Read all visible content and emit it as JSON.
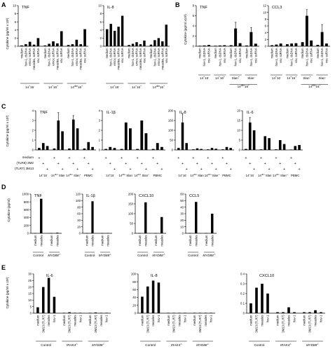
{
  "chart_data": [
    {
      "panel": "A",
      "type": "bar",
      "ylabel": "Cytokine (pg/ml x 10²)",
      "charts": [
        {
          "title": "TNF",
          "ylim": [
            0,
            10
          ],
          "yticks": [
            0,
            2,
            4,
            6,
            8,
            10
          ],
          "categories": [
            "medium",
            "hsv-1, dsDNA",
            "emcv, ssRNA",
            "measles, ssRNA",
            "vsv, ssRNA"
          ],
          "group_width": 5,
          "values": [
            0.2,
            0.5,
            1.1,
            0.4,
            2.0,
            0.2,
            0.6,
            1.2,
            0.7,
            3.7,
            0.3,
            0.5,
            1.6,
            0.5,
            4.2
          ],
          "groups": [
            {
              "label_parts": [
                "14",
                "+",
                "16",
                "-"
              ]
            },
            {
              "label_parts": [
                "14",
                "+",
                "16",
                "+"
              ]
            },
            {
              "label_parts": [
                "14",
                "dim",
                "16",
                "+"
              ]
            }
          ]
        },
        {
          "title": "IL-8",
          "ylim": [
            0,
            10
          ],
          "yticks": [
            0,
            2,
            4,
            6,
            8,
            10
          ],
          "categories": [
            "medium",
            "hsv-1, dsDNA",
            "emcv, ssRNA",
            "measles, ssRNA",
            "vsv, ssRNA"
          ],
          "group_width": 5,
          "values": [
            4.2,
            5.5,
            3.8,
            4.8,
            7.5,
            0.3,
            0.6,
            1.0,
            0.5,
            1.4,
            0.4,
            1.5,
            2.0,
            1.2,
            5.3
          ],
          "groups": [
            {
              "label_parts": [
                "14",
                "+",
                "16",
                "-"
              ]
            },
            {
              "label_parts": [
                "14",
                "+",
                "16",
                "+"
              ]
            },
            {
              "label_parts": [
                "14",
                "dim",
                "16",
                "+"
              ]
            }
          ]
        }
      ]
    },
    {
      "panel": "B",
      "type": "bar",
      "ylabel": "Cytokine (pg/ml x10²)",
      "charts": [
        {
          "title": "TNF",
          "ylim": [
            0,
            8
          ],
          "yticks": [
            0,
            2,
            4,
            6,
            8
          ],
          "categories": [
            "medium",
            "hsv-1, dsDNA",
            "vsv, ssRNA"
          ],
          "group_width": 3,
          "values": [
            0.1,
            0.15,
            0.25,
            0.1,
            0.15,
            0.2,
            0.2,
            3.5,
            0.6,
            0.15,
            2.8,
            0.5
          ],
          "errors": [
            0,
            0,
            0,
            0,
            0,
            0,
            0,
            1.2,
            0,
            0,
            0.9,
            0
          ],
          "groups": [
            {
              "label_parts": [
                "14",
                "+",
                "16",
                "-"
              ]
            },
            {
              "label_parts": [
                "14",
                "+",
                "16",
                "+"
              ]
            },
            {
              "label_parts": [
                "Slan",
                "+"
              ]
            },
            {
              "label_parts": [
                "Slan",
                "-"
              ]
            }
          ],
          "supergroup": {
            "label_parts": [
              "14",
              "dim",
              "16",
              "+"
            ],
            "span": [
              2,
              3
            ]
          }
        },
        {
          "title": "CCL3",
          "ylim": [
            0,
            12
          ],
          "yticks": [
            0,
            2,
            4,
            6,
            8,
            10,
            12
          ],
          "categories": [
            "medium",
            "hsv-1, dsDNA",
            "vsv, ssRNA"
          ],
          "group_width": 3,
          "values": [
            0.3,
            0.5,
            0.8,
            0.6,
            0.8,
            0.9,
            1.2,
            9.0,
            1.7,
            0.4,
            4.2,
            0.8
          ],
          "errors": [
            0,
            0,
            0,
            0,
            0,
            0,
            0,
            1.8,
            0,
            0,
            2.2,
            0
          ],
          "groups": [
            {
              "label_parts": [
                "14",
                "+",
                "16",
                "-"
              ]
            },
            {
              "label_parts": [
                "14",
                "+",
                "16",
                "+"
              ]
            },
            {
              "label_parts": [
                "Slan",
                "+"
              ]
            },
            {
              "label_parts": [
                "Slan",
                "-"
              ]
            }
          ],
          "supergroup": {
            "label_parts": [
              "14",
              "dim",
              "16",
              "+"
            ],
            "span": [
              2,
              3
            ]
          }
        }
      ]
    },
    {
      "panel": "C",
      "type": "bar",
      "ylabel": "Cytokine (pg/ml x 10³)",
      "conditions": [
        "medium",
        "(TLR8) 3M2",
        "(TLR7) 3M13"
      ],
      "plus_pattern": [
        [
          0
        ],
        [
          1
        ],
        [
          2
        ]
      ],
      "charts": [
        {
          "title": "TNF",
          "ylim": [
            0,
            4
          ],
          "yticks": [
            0,
            1,
            2,
            3,
            4
          ],
          "group_width": 3,
          "values": [
            0.2,
            0.7,
            0.4,
            0.15,
            3.0,
            1.9,
            0.15,
            3.1,
            2.2,
            0.15,
            0.8,
            0.3
          ],
          "errors": [
            0,
            0,
            0,
            0,
            0.8,
            0,
            0,
            0.4,
            0,
            0,
            0,
            0
          ],
          "groups": [
            {
              "label_parts": [
                "14",
                "+",
                "16",
                "-"
              ]
            },
            {
              "label_parts": [
                "14",
                "dim",
                " Slan",
                "-"
              ]
            },
            {
              "label_parts": [
                "14",
                "dim",
                " Slan",
                "+"
              ]
            },
            {
              "label_parts": [
                "PBMC"
              ]
            }
          ]
        },
        {
          "title": "IL-1β",
          "ylim": [
            0,
            4
          ],
          "yticks": [
            0,
            1,
            2,
            3,
            4
          ],
          "group_width": 3,
          "values": [
            0.1,
            0.3,
            0.2,
            0.1,
            2.8,
            2.2,
            0.1,
            3.0,
            1.7,
            0.1,
            0.7,
            0.3
          ],
          "errors": [
            0,
            0,
            0,
            0,
            0,
            0,
            0,
            0,
            0,
            0,
            0,
            0
          ],
          "groups": [
            {
              "label_parts": [
                "14",
                "+",
                "16",
                "-"
              ]
            },
            {
              "label_parts": [
                "14",
                "dim",
                " Slan",
                "-"
              ]
            },
            {
              "label_parts": [
                "14",
                "dim",
                " Slan",
                "+"
              ]
            },
            {
              "label_parts": [
                "PBMC"
              ]
            }
          ]
        },
        {
          "title": "IL-8",
          "ylim": [
            0,
            200
          ],
          "yticks": [
            0,
            50,
            100,
            150,
            200
          ],
          "group_width": 3,
          "values": [
            10,
            140,
            35,
            3,
            8,
            5,
            3,
            10,
            6,
            3,
            15,
            10
          ],
          "errors": [
            0,
            45,
            0,
            0,
            0,
            0,
            0,
            0,
            0,
            0,
            0,
            0
          ],
          "groups": [
            {
              "label_parts": [
                "14",
                "+",
                "16",
                "-"
              ]
            },
            {
              "label_parts": [
                "14",
                "dim",
                " Slan",
                "-"
              ]
            },
            {
              "label_parts": [
                "14",
                "dim",
                " Slan",
                "+"
              ]
            },
            {
              "label_parts": [
                "PBMC"
              ]
            }
          ]
        },
        {
          "title": "IL-6",
          "ylim": [
            0,
            20
          ],
          "yticks": [
            0,
            5,
            10,
            15,
            20
          ],
          "group_width": 3,
          "values": [
            0.5,
            14.0,
            10.0,
            0.3,
            7.0,
            6.0,
            0.3,
            5.0,
            3.0,
            0.2,
            2.0,
            2.5
          ],
          "errors": [
            0,
            2.5,
            0,
            0,
            0,
            0,
            0,
            0,
            0,
            0,
            0,
            0
          ],
          "groups": [
            {
              "label_parts": [
                "14",
                "+",
                "16",
                "-"
              ]
            },
            {
              "label_parts": [
                "14",
                "dim",
                " Slan",
                "-"
              ]
            },
            {
              "label_parts": [
                "14",
                "dim",
                " Slan",
                "+"
              ]
            },
            {
              "label_parts": [
                "PBMC"
              ]
            }
          ]
        }
      ]
    },
    {
      "panel": "D",
      "type": "bar",
      "ylabel": "Cytokine (pg/ml)",
      "charts": [
        {
          "title": "TNF",
          "ylim": [
            0,
            1000
          ],
          "yticks": [
            0,
            200,
            400,
            600,
            800,
            1000
          ],
          "categories": [
            "medium",
            "measles"
          ],
          "group_width": 2,
          "values": [
            5,
            880,
            5,
            15
          ],
          "groups": [
            {
              "label_parts": [
                "Control"
              ]
            },
            {
              "label_parts": [
                "MYD88",
                "-/-"
              ]
            }
          ]
        },
        {
          "title": "IL-1β",
          "ylim": [
            0,
            120
          ],
          "yticks": [
            0,
            20,
            40,
            60,
            80,
            100,
            120
          ],
          "categories": [
            "medium",
            "measles"
          ],
          "group_width": 2,
          "values": [
            0.5,
            98,
            0.5,
            1
          ],
          "groups": [
            {
              "label_parts": [
                "Control"
              ]
            },
            {
              "label_parts": [
                "MYD88",
                "-/-"
              ]
            }
          ]
        },
        {
          "title": "CXCL10",
          "ylim": [
            0,
            200
          ],
          "yticks": [
            0,
            50,
            100,
            150,
            200
          ],
          "categories": [
            "medium",
            "measles"
          ],
          "group_width": 2,
          "values": [
            1,
            158,
            1,
            83
          ],
          "groups": [
            {
              "label_parts": [
                "Control"
              ]
            },
            {
              "label_parts": [
                "MYD88",
                "-/-"
              ]
            }
          ]
        },
        {
          "title": "CCL5",
          "ylim": [
            0,
            60
          ],
          "yticks": [
            0,
            10,
            20,
            30,
            40,
            50,
            60
          ],
          "categories": [
            "medium",
            "measles"
          ],
          "group_width": 2,
          "values": [
            0.5,
            48,
            0.5,
            30
          ],
          "groups": [
            {
              "label_parts": [
                "Control"
              ]
            },
            {
              "label_parts": [
                "MYD88",
                "-/-"
              ]
            }
          ]
        }
      ]
    },
    {
      "panel": "E",
      "type": "bar",
      "ylabel": "Cytokine (pg/ml x 10²)",
      "charts": [
        {
          "title": "IL-6",
          "ylim": [
            0,
            30
          ],
          "yticks": [
            0,
            5,
            10,
            15,
            20,
            25,
            30
          ],
          "categories": [
            "medium",
            "3M13 (TLR7)",
            "measles",
            "hsv-1"
          ],
          "group_width": 4,
          "values": [
            4.5,
            20,
            27,
            12.5,
            0.3,
            0.7,
            0.3,
            0.3,
            0.3,
            0.5,
            0.3,
            0.3
          ],
          "groups": [
            {
              "label_parts": [
                "Control"
              ]
            },
            {
              "label_parts": [
                "IRAK4",
                "-/-"
              ]
            },
            {
              "label_parts": [
                "MYD88",
                "-/-"
              ]
            }
          ]
        },
        {
          "title": "IL-8",
          "ylim": [
            0,
            100
          ],
          "yticks": [
            0,
            20,
            40,
            60,
            80,
            100
          ],
          "categories": [
            "medium",
            "3M13 (TLR7)",
            "measles",
            "hsv-1"
          ],
          "group_width": 4,
          "values": [
            42,
            68,
            83,
            78,
            1,
            1,
            1,
            1,
            1,
            1,
            1,
            1
          ],
          "groups": [
            {
              "label_parts": [
                "Control"
              ]
            },
            {
              "label_parts": [
                "IRAK4",
                "-/-"
              ]
            },
            {
              "label_parts": [
                "MYD88",
                "-/-"
              ]
            }
          ]
        },
        {
          "title": "CXCL10",
          "ylim": [
            0,
            0.4
          ],
          "yticks": [
            0,
            0.1,
            0.2,
            0.3,
            0.4
          ],
          "categories": [
            "medium",
            "3M13 (TLR7)",
            "measles",
            "hsv-1"
          ],
          "group_width": 4,
          "values": [
            0.1,
            0.26,
            0.3,
            0.2,
            0.01,
            0.01,
            0.06,
            0.01,
            0.01,
            0.01,
            0.03,
            0.01
          ],
          "groups": [
            {
              "label_parts": [
                "Control"
              ]
            },
            {
              "label_parts": [
                "IRAK4",
                "-/-"
              ]
            },
            {
              "label_parts": [
                "MYD88",
                "-/-"
              ]
            }
          ]
        }
      ]
    }
  ]
}
